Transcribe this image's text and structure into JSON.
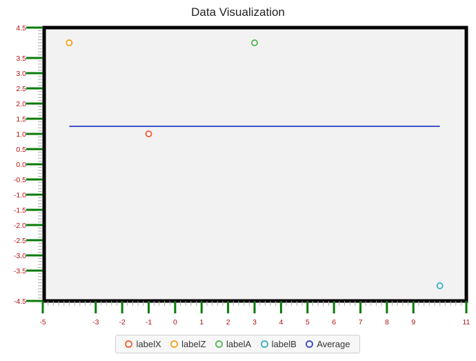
{
  "chart_data": {
    "type": "scatter",
    "title": "Data Visualization",
    "xlabel": "",
    "ylabel": "",
    "xlim": [
      -5,
      11
    ],
    "ylim": [
      -4.5,
      4.5
    ],
    "x_ticks": [
      -5,
      -3,
      -2,
      -1,
      0,
      1,
      2,
      3,
      4,
      5,
      6,
      7,
      8,
      9,
      11
    ],
    "y_ticks": [
      4.5,
      3.5,
      3.0,
      2.5,
      2.0,
      1.5,
      1.0,
      0.5,
      0.0,
      -0.5,
      -1.0,
      -1.5,
      -2.0,
      -2.5,
      -3.0,
      -3.5,
      -4.5
    ],
    "x_tick_labels": [
      "-5",
      "-3",
      "-2",
      "-1",
      "0",
      "1",
      "2",
      "3",
      "4",
      "5",
      "6",
      "7",
      "8",
      "9",
      "11"
    ],
    "y_tick_labels": [
      "4.5",
      "3.5",
      "3.0",
      "2.5",
      "2.0",
      "1.5",
      "1.0",
      "0.5",
      "0.0",
      "-0.5",
      "-1.0",
      "-1.5",
      "-2.0",
      "-2.5",
      "-3.0",
      "-3.5",
      "-4.5"
    ],
    "grid": false,
    "legend_position": "bottom-center",
    "series": [
      {
        "name": "labelX",
        "color": "#f0643c",
        "marker": "circle",
        "points": [
          {
            "x": -1,
            "y": 1
          }
        ]
      },
      {
        "name": "labelZ",
        "color": "#f5a623",
        "marker": "circle",
        "points": [
          {
            "x": -4,
            "y": 4
          }
        ]
      },
      {
        "name": "labelA",
        "color": "#5cb85c",
        "marker": "circle",
        "points": [
          {
            "x": 3,
            "y": 4
          }
        ]
      },
      {
        "name": "labelB",
        "color": "#46b0c8",
        "marker": "circle",
        "points": [
          {
            "x": 10,
            "y": -4
          }
        ]
      },
      {
        "name": "Average",
        "color": "#3f51c6",
        "marker": "line",
        "points": [
          {
            "x": -4,
            "y": 1.25
          },
          {
            "x": 10,
            "y": 1.25
          }
        ]
      }
    ]
  },
  "style": {
    "plot_background": "#f2f2f2",
    "plot_border": "#000000",
    "axis_color": "#0a7a0a",
    "tick_label_color": "#b01010"
  }
}
